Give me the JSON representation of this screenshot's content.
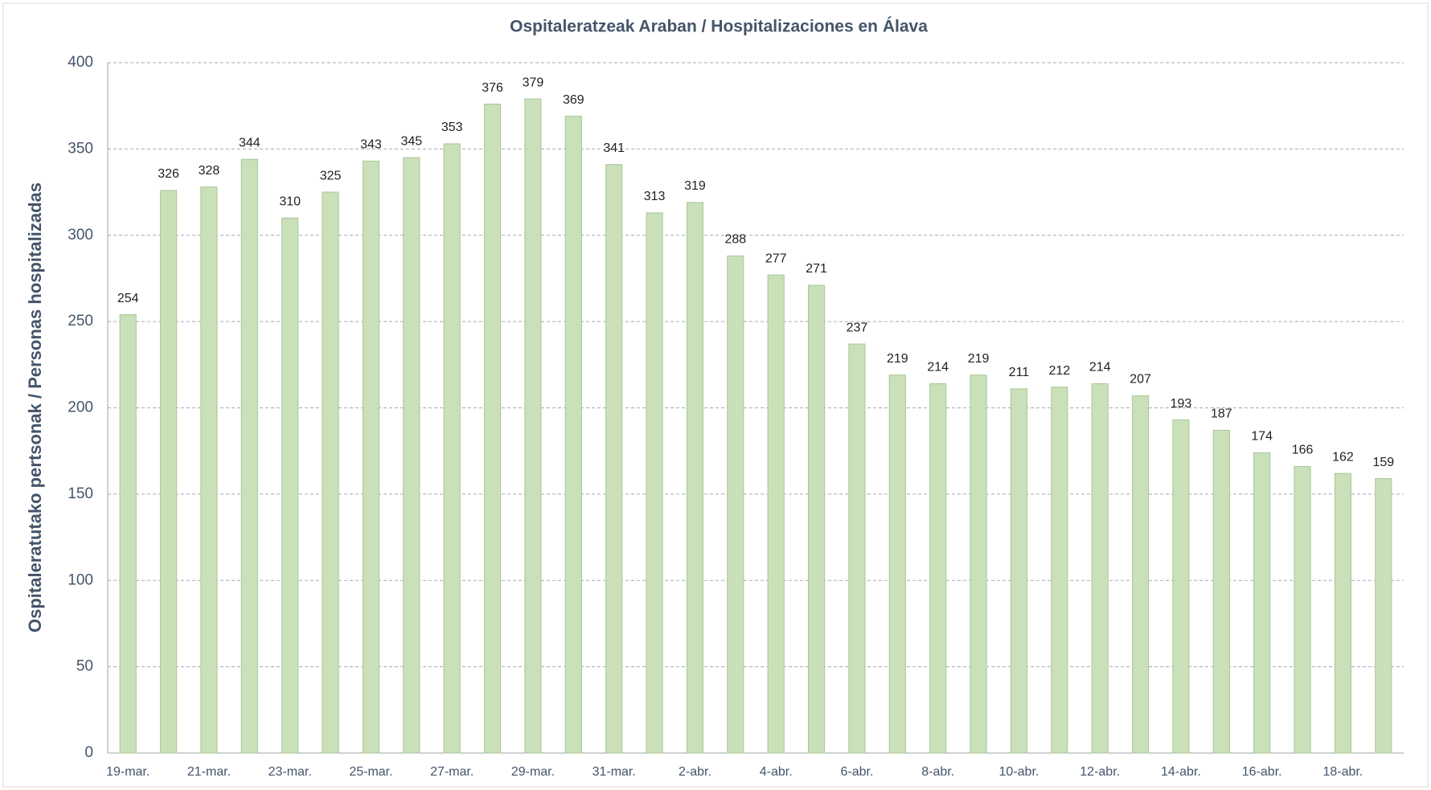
{
  "chart_data": {
    "type": "bar",
    "title": "Ospitaleratzeak Araban / Hospitalizaciones en Álava",
    "y_label": "Ospitaleratutako pertsonak / Personas hospitalizadas",
    "categories": [
      "19-mar.",
      null,
      "21-mar.",
      null,
      "23-mar.",
      null,
      "25-mar.",
      null,
      "27-mar.",
      null,
      "29-mar.",
      null,
      "31-mar.",
      null,
      "2-abr.",
      null,
      "4-abr.",
      null,
      "6-abr.",
      null,
      "8-abr.",
      null,
      "10-abr.",
      null,
      "12-abr.",
      null,
      "14-abr.",
      null,
      "16-abr.",
      null,
      "18-abr.",
      null
    ],
    "values": [
      254,
      326,
      328,
      344,
      310,
      325,
      343,
      345,
      353,
      376,
      379,
      369,
      341,
      313,
      319,
      288,
      277,
      271,
      237,
      219,
      214,
      219,
      211,
      212,
      214,
      207,
      193,
      187,
      174,
      166,
      162,
      159
    ],
    "color": "#c9e0b8",
    "ylim": [
      0,
      400
    ],
    "yticks": [
      0,
      50,
      100,
      150,
      200,
      250,
      300,
      350,
      400
    ],
    "grid": true
  }
}
